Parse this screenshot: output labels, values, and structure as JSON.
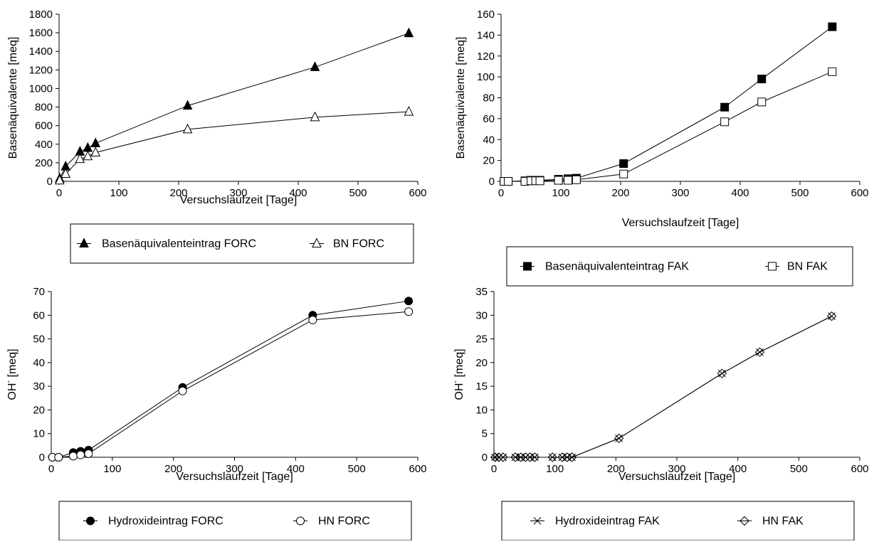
{
  "chart_data": [
    {
      "type": "line",
      "xlabel": "Versuchslaufzeit [Tage]",
      "ylabel": "Basenäquivalente [meq]",
      "xlim": [
        0,
        600
      ],
      "xstep": 100,
      "ylim": [
        0,
        1800
      ],
      "ystep": 200,
      "series": [
        {
          "name": "Basenäquivalenteintrag FORC",
          "marker": "triangle-filled",
          "x": [
            1,
            11,
            35,
            48,
            61,
            215,
            428,
            585
          ],
          "y": [
            30,
            160,
            320,
            360,
            410,
            815,
            1230,
            1595
          ]
        },
        {
          "name": "BN FORC",
          "marker": "triangle-open",
          "x": [
            1,
            11,
            35,
            48,
            61,
            215,
            428,
            585
          ],
          "y": [
            10,
            80,
            240,
            270,
            310,
            560,
            690,
            750
          ]
        }
      ]
    },
    {
      "type": "line",
      "xlabel": "Versuchslaufzeit [Tage]",
      "ylabel": "Basenäquivalente [meq]",
      "xlim": [
        0,
        600
      ],
      "xstep": 100,
      "ylim": [
        0,
        160
      ],
      "ystep": 20,
      "series": [
        {
          "name": "Basenäquivalenteintrag FAK",
          "marker": "square-filled",
          "x": [
            5,
            12,
            40,
            50,
            58,
            65,
            96,
            112,
            126,
            205,
            374,
            436,
            554
          ],
          "y": [
            0,
            0,
            0.5,
            1,
            1,
            1,
            2,
            2.5,
            3,
            17,
            71,
            98,
            148
          ]
        },
        {
          "name": "BN FAK",
          "marker": "square-open",
          "x": [
            5,
            12,
            40,
            50,
            58,
            65,
            96,
            112,
            126,
            205,
            374,
            436,
            554
          ],
          "y": [
            0,
            0,
            0,
            0.5,
            0.5,
            0.5,
            1,
            1,
            1.5,
            7,
            57,
            76,
            105
          ]
        }
      ]
    },
    {
      "type": "line",
      "xlabel": "Versuchslaufzeit [Tage]",
      "ylabel": "OH",
      "ylabel_sup": "-",
      "ylabel_suffix": " [meq]",
      "xlim": [
        0,
        600
      ],
      "xstep": 100,
      "ylim": [
        0,
        70
      ],
      "ystep": 10,
      "series": [
        {
          "name": "Hydroxideintrag FORC",
          "marker": "circle-filled",
          "x": [
            2,
            12,
            36,
            48,
            61,
            215,
            428,
            585
          ],
          "y": [
            0,
            0,
            2,
            2.5,
            3,
            29.5,
            60,
            66
          ]
        },
        {
          "name": "HN FORC",
          "marker": "circle-open",
          "x": [
            2,
            12,
            36,
            48,
            61,
            215,
            428,
            585
          ],
          "y": [
            0,
            0,
            0.5,
            1,
            1.5,
            28,
            58,
            61.5
          ]
        }
      ]
    },
    {
      "type": "line",
      "xlabel": "Versuchslaufzeit [Tage]",
      "ylabel": "OH",
      "ylabel_sup": "-",
      "ylabel_suffix": " [meq]",
      "xlim": [
        0,
        600
      ],
      "xstep": 100,
      "ylim": [
        0,
        35
      ],
      "ystep": 5,
      "series": [
        {
          "name": "Hydroxideintrag FAK",
          "marker": "cross",
          "x": [
            2,
            8,
            15,
            35,
            44,
            52,
            59,
            67,
            96,
            112,
            120,
            128,
            205,
            374,
            436,
            554
          ],
          "y": [
            0,
            0,
            0,
            0,
            0,
            0,
            0,
            0,
            0,
            0,
            0,
            0,
            4,
            17.7,
            22.2,
            29.8
          ]
        },
        {
          "name": "HN FAK",
          "marker": "diamond-open",
          "x": [
            2,
            8,
            15,
            35,
            44,
            52,
            59,
            67,
            96,
            112,
            120,
            128,
            205,
            374,
            436,
            554
          ],
          "y": [
            0,
            0,
            0,
            0,
            0,
            0,
            0,
            0,
            0,
            0,
            0,
            0,
            4,
            17.7,
            22.2,
            29.8
          ]
        }
      ]
    }
  ]
}
